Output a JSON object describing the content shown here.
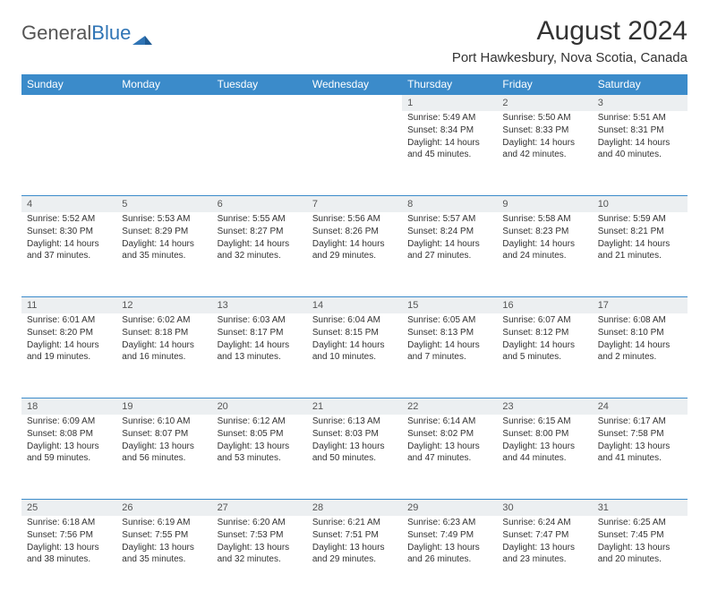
{
  "logo": {
    "text1": "General",
    "text2": "Blue"
  },
  "title": "August 2024",
  "location": "Port Hawkesbury, Nova Scotia, Canada",
  "colors": {
    "header_bg": "#3b8bca",
    "header_text": "#ffffff",
    "daynum_bg": "#eceff1",
    "page_bg": "#ffffff",
    "text": "#333333",
    "logo_gray": "#555555",
    "logo_blue": "#2f74b5"
  },
  "weekdays": [
    "Sunday",
    "Monday",
    "Tuesday",
    "Wednesday",
    "Thursday",
    "Friday",
    "Saturday"
  ],
  "startOffset": 4,
  "days": [
    {
      "n": 1,
      "sr": "5:49 AM",
      "ss": "8:34 PM",
      "dl": "14 hours and 45 minutes."
    },
    {
      "n": 2,
      "sr": "5:50 AM",
      "ss": "8:33 PM",
      "dl": "14 hours and 42 minutes."
    },
    {
      "n": 3,
      "sr": "5:51 AM",
      "ss": "8:31 PM",
      "dl": "14 hours and 40 minutes."
    },
    {
      "n": 4,
      "sr": "5:52 AM",
      "ss": "8:30 PM",
      "dl": "14 hours and 37 minutes."
    },
    {
      "n": 5,
      "sr": "5:53 AM",
      "ss": "8:29 PM",
      "dl": "14 hours and 35 minutes."
    },
    {
      "n": 6,
      "sr": "5:55 AM",
      "ss": "8:27 PM",
      "dl": "14 hours and 32 minutes."
    },
    {
      "n": 7,
      "sr": "5:56 AM",
      "ss": "8:26 PM",
      "dl": "14 hours and 29 minutes."
    },
    {
      "n": 8,
      "sr": "5:57 AM",
      "ss": "8:24 PM",
      "dl": "14 hours and 27 minutes."
    },
    {
      "n": 9,
      "sr": "5:58 AM",
      "ss": "8:23 PM",
      "dl": "14 hours and 24 minutes."
    },
    {
      "n": 10,
      "sr": "5:59 AM",
      "ss": "8:21 PM",
      "dl": "14 hours and 21 minutes."
    },
    {
      "n": 11,
      "sr": "6:01 AM",
      "ss": "8:20 PM",
      "dl": "14 hours and 19 minutes."
    },
    {
      "n": 12,
      "sr": "6:02 AM",
      "ss": "8:18 PM",
      "dl": "14 hours and 16 minutes."
    },
    {
      "n": 13,
      "sr": "6:03 AM",
      "ss": "8:17 PM",
      "dl": "14 hours and 13 minutes."
    },
    {
      "n": 14,
      "sr": "6:04 AM",
      "ss": "8:15 PM",
      "dl": "14 hours and 10 minutes."
    },
    {
      "n": 15,
      "sr": "6:05 AM",
      "ss": "8:13 PM",
      "dl": "14 hours and 7 minutes."
    },
    {
      "n": 16,
      "sr": "6:07 AM",
      "ss": "8:12 PM",
      "dl": "14 hours and 5 minutes."
    },
    {
      "n": 17,
      "sr": "6:08 AM",
      "ss": "8:10 PM",
      "dl": "14 hours and 2 minutes."
    },
    {
      "n": 18,
      "sr": "6:09 AM",
      "ss": "8:08 PM",
      "dl": "13 hours and 59 minutes."
    },
    {
      "n": 19,
      "sr": "6:10 AM",
      "ss": "8:07 PM",
      "dl": "13 hours and 56 minutes."
    },
    {
      "n": 20,
      "sr": "6:12 AM",
      "ss": "8:05 PM",
      "dl": "13 hours and 53 minutes."
    },
    {
      "n": 21,
      "sr": "6:13 AM",
      "ss": "8:03 PM",
      "dl": "13 hours and 50 minutes."
    },
    {
      "n": 22,
      "sr": "6:14 AM",
      "ss": "8:02 PM",
      "dl": "13 hours and 47 minutes."
    },
    {
      "n": 23,
      "sr": "6:15 AM",
      "ss": "8:00 PM",
      "dl": "13 hours and 44 minutes."
    },
    {
      "n": 24,
      "sr": "6:17 AM",
      "ss": "7:58 PM",
      "dl": "13 hours and 41 minutes."
    },
    {
      "n": 25,
      "sr": "6:18 AM",
      "ss": "7:56 PM",
      "dl": "13 hours and 38 minutes."
    },
    {
      "n": 26,
      "sr": "6:19 AM",
      "ss": "7:55 PM",
      "dl": "13 hours and 35 minutes."
    },
    {
      "n": 27,
      "sr": "6:20 AM",
      "ss": "7:53 PM",
      "dl": "13 hours and 32 minutes."
    },
    {
      "n": 28,
      "sr": "6:21 AM",
      "ss": "7:51 PM",
      "dl": "13 hours and 29 minutes."
    },
    {
      "n": 29,
      "sr": "6:23 AM",
      "ss": "7:49 PM",
      "dl": "13 hours and 26 minutes."
    },
    {
      "n": 30,
      "sr": "6:24 AM",
      "ss": "7:47 PM",
      "dl": "13 hours and 23 minutes."
    },
    {
      "n": 31,
      "sr": "6:25 AM",
      "ss": "7:45 PM",
      "dl": "13 hours and 20 minutes."
    }
  ],
  "labels": {
    "sunrise": "Sunrise:",
    "sunset": "Sunset:",
    "daylight": "Daylight:"
  }
}
